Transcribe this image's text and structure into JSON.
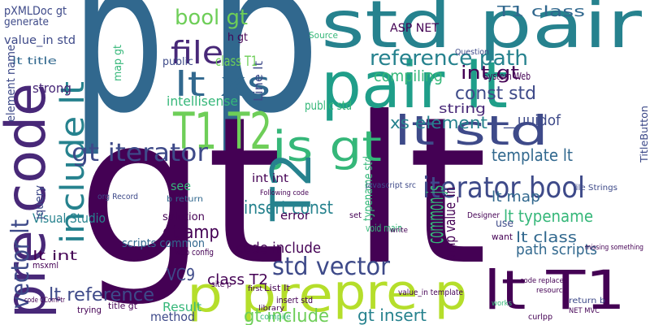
{
  "words": [
    "p",
    "p",
    "gt lt",
    "std pair",
    "pair lt",
    "pre code",
    "include lt",
    "T1 T2",
    "lt xs",
    "file",
    "bool gt",
    "js gt",
    "T2",
    "lt std",
    "gt iterator",
    "reference path",
    "T1 class",
    "compiling",
    "int gt",
    "const std",
    "__uuidof",
    "xs element",
    "string",
    "template lt",
    "iterator bool",
    "lt map",
    "lt typename",
    "lt class",
    "path scripts",
    "lt T1",
    "pre p",
    "p pre",
    "std vector",
    "common js",
    "amp value_in",
    "vector lt",
    "gt amp",
    "insert const",
    "Visual Studio",
    "VC9",
    "gt include",
    "gt insert",
    "lt reference",
    "Result",
    "method",
    "class T2",
    "code include",
    "lt int",
    "strong",
    "pXMLDoc gt",
    "generate",
    "value_in std",
    "lt title",
    "intellisense",
    "int int",
    "typename std",
    "public std",
    "Line lt",
    "ASP NET",
    "error",
    "see",
    "scripts common",
    "solution",
    "System Web",
    "map gt",
    "class T1",
    "h gt",
    "public",
    "element name",
    "jquery",
    "file Strings",
    "TitleButton",
    "use",
    "want",
    "site p",
    "web config",
    "title gt",
    "msxml",
    "trying",
    "org Record",
    "b return",
    "Source",
    "void main",
    "javascript src",
    "List lt",
    "insert std",
    "Question",
    "Designer",
    "missing something",
    "return b",
    "NET MVC",
    "curlpp",
    "works",
    "Following code",
    "compile",
    "code replaces",
    "resource",
    "value_in template",
    "set",
    "write",
    "first",
    "library",
    "code CComPtr"
  ]
}
